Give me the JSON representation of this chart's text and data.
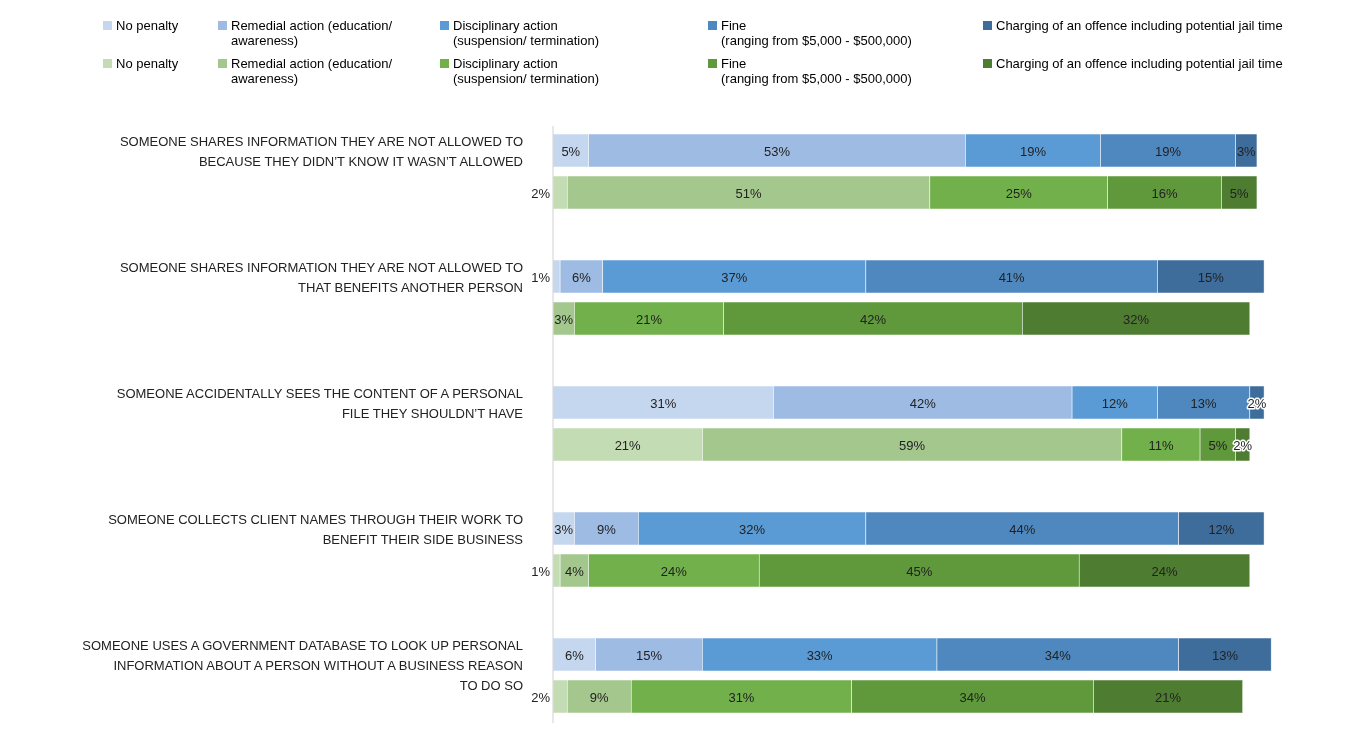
{
  "chart_data": {
    "type": "bar",
    "orientation": "horizontal",
    "stacked": true,
    "legend": "top",
    "data_labels": true,
    "categories": [
      "SOMEONE SHARES INFORMATION THEY ARE NOT ALLOWED TO BECAUSE THEY DIDN’T KNOW IT WASN’T ALLOWED",
      null,
      "SOMEONE SHARES INFORMATION THEY ARE NOT ALLOWED TO THAT BENEFITS ANOTHER PERSON",
      null,
      "SOMEONE ACCIDENTALLY SEES THE CONTENT OF A PERSONAL FILE THEY SHOULDN’T HAVE",
      null,
      "SOMEONE COLLECTS CLIENT NAMES THROUGH THEIR WORK TO BENEFIT THEIR SIDE BUSINESS",
      null,
      "SOMEONE USES A GOVERNMENT DATABASE TO LOOK UP PERSONAL INFORMATION ABOUT A PERSON WITHOUT A BUSINESS REASON TO DO SO",
      null
    ],
    "series": [
      {
        "name": "No penalty",
        "color": "#c5d7ef",
        "values": [
          5,
          null,
          1,
          null,
          31,
          null,
          3,
          null,
          6,
          null
        ],
        "value_labels": [
          "5%",
          null,
          "1%",
          null,
          "31%",
          null,
          "3%",
          null,
          "6%",
          null
        ]
      },
      {
        "name": "Remedial action (education/ awareness)",
        "color": "#9dbbe3",
        "values": [
          53,
          null,
          6,
          null,
          42,
          null,
          9,
          null,
          15,
          null
        ],
        "value_labels": [
          "53%",
          null,
          "6%",
          null,
          "42%",
          null,
          "9%",
          null,
          "15%",
          null
        ]
      },
      {
        "name": "Disciplinary action (suspension/ termination)",
        "color": "#5b9bd5",
        "values": [
          19,
          null,
          37,
          null,
          12,
          null,
          32,
          null,
          33,
          null
        ],
        "value_labels": [
          "19%",
          null,
          "37%",
          null,
          "12%",
          null,
          "32%",
          null,
          "33%",
          null
        ]
      },
      {
        "name": "Fine (ranging from $5,000 - $500,000)",
        "color": "#4f88bf",
        "values": [
          19,
          null,
          41,
          null,
          13,
          null,
          44,
          null,
          34,
          null
        ],
        "value_labels": [
          "19%",
          null,
          "41%",
          null,
          "13%",
          null,
          "44%",
          null,
          "34%",
          null
        ]
      },
      {
        "name": "Charging of an offence including potential jail time",
        "color": "#3e6c9b",
        "values": [
          3,
          null,
          15,
          null,
          2,
          null,
          12,
          null,
          13,
          null
        ],
        "value_labels": [
          "3%",
          null,
          "15%",
          null,
          "2%",
          null,
          "12%",
          null,
          "13%",
          null
        ]
      },
      {
        "name": "No penalty",
        "color": "#c3dcb3",
        "values": [
          null,
          2,
          null,
          null,
          null,
          21,
          null,
          1,
          null,
          2
        ],
        "value_labels": [
          null,
          "2%",
          null,
          null,
          null,
          "21%",
          null,
          "1%",
          null,
          "2%"
        ]
      },
      {
        "name": "Remedial action (education/ awareness)",
        "color": "#a4c78e",
        "values": [
          null,
          51,
          null,
          3,
          null,
          59,
          null,
          4,
          null,
          9
        ],
        "value_labels": [
          null,
          "51%",
          null,
          "3%",
          null,
          "59%",
          null,
          "4%",
          null,
          "9%"
        ]
      },
      {
        "name": "Disciplinary action (suspension/ termination)",
        "color": "#71b04a",
        "values": [
          null,
          25,
          null,
          21,
          null,
          11,
          null,
          24,
          null,
          31
        ],
        "value_labels": [
          null,
          "25%",
          null,
          "21%",
          null,
          "11%",
          null,
          "24%",
          null,
          "31%"
        ]
      },
      {
        "name": "Fine (ranging from $5,000 - $500,000)",
        "color": "#5f993c",
        "values": [
          null,
          16,
          null,
          42,
          null,
          5,
          null,
          45,
          null,
          34
        ],
        "value_labels": [
          null,
          "16%",
          null,
          "42%",
          null,
          "5%",
          null,
          "45%",
          null,
          "34%"
        ]
      },
      {
        "name": "Charging of an offence including potential jail time",
        "color": "#4e7d32",
        "values": [
          null,
          5,
          null,
          32,
          null,
          2,
          null,
          24,
          null,
          21
        ],
        "value_labels": [
          null,
          "5%",
          null,
          "32%",
          null,
          "2%",
          null,
          "24%",
          null,
          "21%"
        ]
      }
    ]
  }
}
